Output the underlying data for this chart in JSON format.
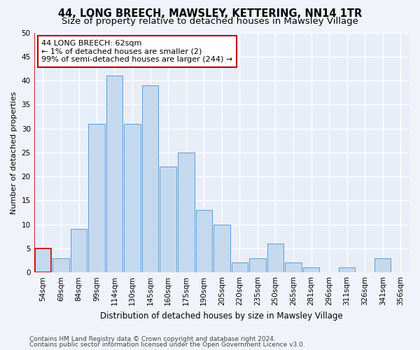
{
  "title1": "44, LONG BREECH, MAWSLEY, KETTERING, NN14 1TR",
  "title2": "Size of property relative to detached houses in Mawsley Village",
  "xlabel": "Distribution of detached houses by size in Mawsley Village",
  "ylabel": "Number of detached properties",
  "categories": [
    "54sqm",
    "69sqm",
    "84sqm",
    "99sqm",
    "114sqm",
    "130sqm",
    "145sqm",
    "160sqm",
    "175sqm",
    "190sqm",
    "205sqm",
    "220sqm",
    "235sqm",
    "250sqm",
    "265sqm",
    "281sqm",
    "296sqm",
    "311sqm",
    "326sqm",
    "341sqm",
    "356sqm"
  ],
  "values": [
    5,
    3,
    9,
    31,
    41,
    31,
    39,
    22,
    25,
    13,
    10,
    2,
    3,
    6,
    2,
    1,
    0,
    1,
    0,
    3,
    0
  ],
  "bar_color": "#c5d9ee",
  "bar_edge_color": "#5b9bd5",
  "highlight_bar_edge_color": "#c00000",
  "annotation_box_text": "44 LONG BREECH: 62sqm\n← 1% of detached houses are smaller (2)\n99% of semi-detached houses are larger (244) →",
  "ylim": [
    0,
    50
  ],
  "yticks": [
    0,
    5,
    10,
    15,
    20,
    25,
    30,
    35,
    40,
    45,
    50
  ],
  "footer1": "Contains HM Land Registry data © Crown copyright and database right 2024.",
  "footer2": "Contains public sector information licensed under the Open Government Licence v3.0.",
  "bg_color": "#f0f4fa",
  "plot_bg_color": "#e8eef8",
  "title1_fontsize": 10.5,
  "title2_fontsize": 9.5,
  "xlabel_fontsize": 8.5,
  "ylabel_fontsize": 8,
  "tick_fontsize": 7.5,
  "annotation_fontsize": 8,
  "footer_fontsize": 6.5
}
